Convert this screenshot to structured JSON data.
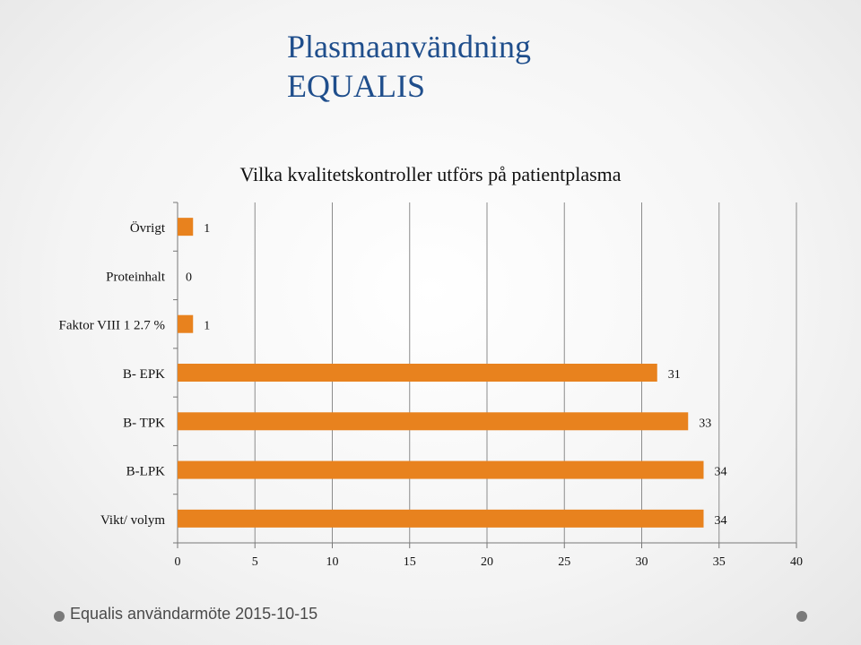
{
  "slide": {
    "title_line1": "Plasmaanvändning",
    "title_line2": "EQUALIS"
  },
  "footer": {
    "text": "Equalis användarmöte 2015-10-15"
  },
  "colors": {
    "bar": "#e8821e",
    "title": "#1f4e8c",
    "grid": "#8c8c8c"
  },
  "chart_data": {
    "type": "bar",
    "orientation": "horizontal",
    "title": "Vilka kvalitetskontroller utförs på patientplasma",
    "categories": [
      "Övrigt",
      "Proteinhalt",
      "Faktor VIII 1 2.7 %",
      "B- EPK",
      "B- TPK",
      "B-LPK",
      "Vikt/ volym"
    ],
    "values": [
      1,
      0,
      1,
      31,
      33,
      34,
      34
    ],
    "xlabel": "",
    "ylabel": "",
    "xlim": [
      0,
      40
    ],
    "xticks": [
      "0",
      "5",
      "10",
      "15",
      "20",
      "25",
      "30",
      "35",
      "40"
    ],
    "grid": true,
    "data_labels": true,
    "legend": "none"
  }
}
